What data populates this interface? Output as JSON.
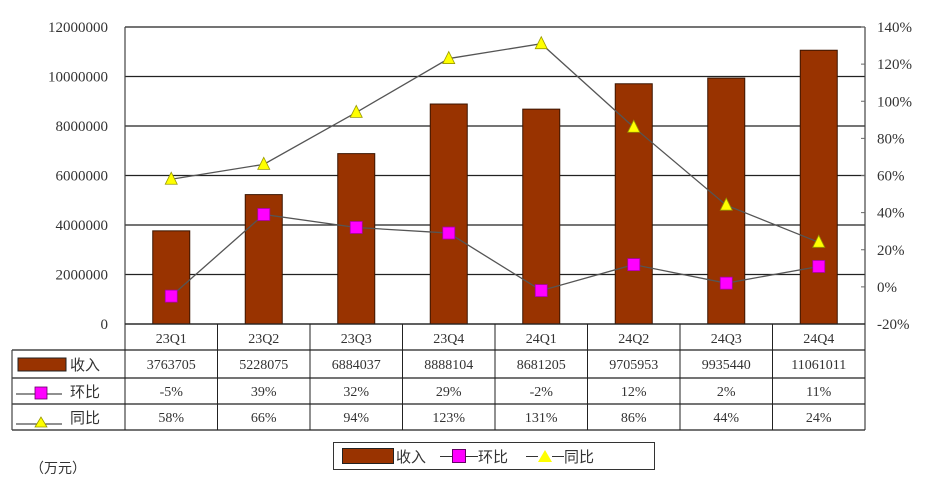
{
  "chart_data": {
    "type": "bar",
    "title": "",
    "xlabel": "",
    "ylabel": "",
    "unit_note": "（万元）",
    "categories": [
      "23Q1",
      "23Q2",
      "23Q3",
      "23Q4",
      "24Q1",
      "24Q2",
      "24Q3",
      "24Q4"
    ],
    "series": [
      {
        "name": "收入",
        "kind": "bar",
        "axis": "left",
        "color": "#993300",
        "values": [
          3763705,
          5228075,
          6884037,
          8888104,
          8681205,
          9705953,
          9935440,
          11061011
        ],
        "labels": [
          "3763705",
          "5228075",
          "6884037",
          "8888104",
          "8681205",
          "9705953",
          "9935440",
          "11061011"
        ]
      },
      {
        "name": "环比",
        "kind": "line",
        "axis": "right",
        "marker": "square",
        "color": "#ff00ff",
        "values": [
          -5,
          39,
          32,
          29,
          -2,
          12,
          2,
          11
        ],
        "labels": [
          "-5%",
          "39%",
          "32%",
          "29%",
          "-2%",
          "12%",
          "2%",
          "11%"
        ]
      },
      {
        "name": "同比",
        "kind": "line",
        "axis": "right",
        "marker": "triangle",
        "color": "#ffff00",
        "values": [
          58,
          66,
          94,
          123,
          131,
          86,
          44,
          24
        ],
        "labels": [
          "58%",
          "66%",
          "94%",
          "123%",
          "131%",
          "86%",
          "44%",
          "24%"
        ]
      }
    ],
    "ylim": [
      0,
      12000000
    ],
    "y2lim": [
      -20,
      140
    ],
    "yticks": [
      "12000000",
      "10000000",
      "8000000",
      "6000000",
      "4000000",
      "2000000",
      "0"
    ],
    "y2ticks": [
      "140%",
      "120%",
      "100%",
      "80%",
      "60%",
      "40%",
      "20%",
      "0%",
      "-20%"
    ],
    "grid": true,
    "legend_position": "bottom",
    "data_table": true
  },
  "legend": {
    "items": [
      "收入",
      "环比",
      "同比"
    ]
  }
}
